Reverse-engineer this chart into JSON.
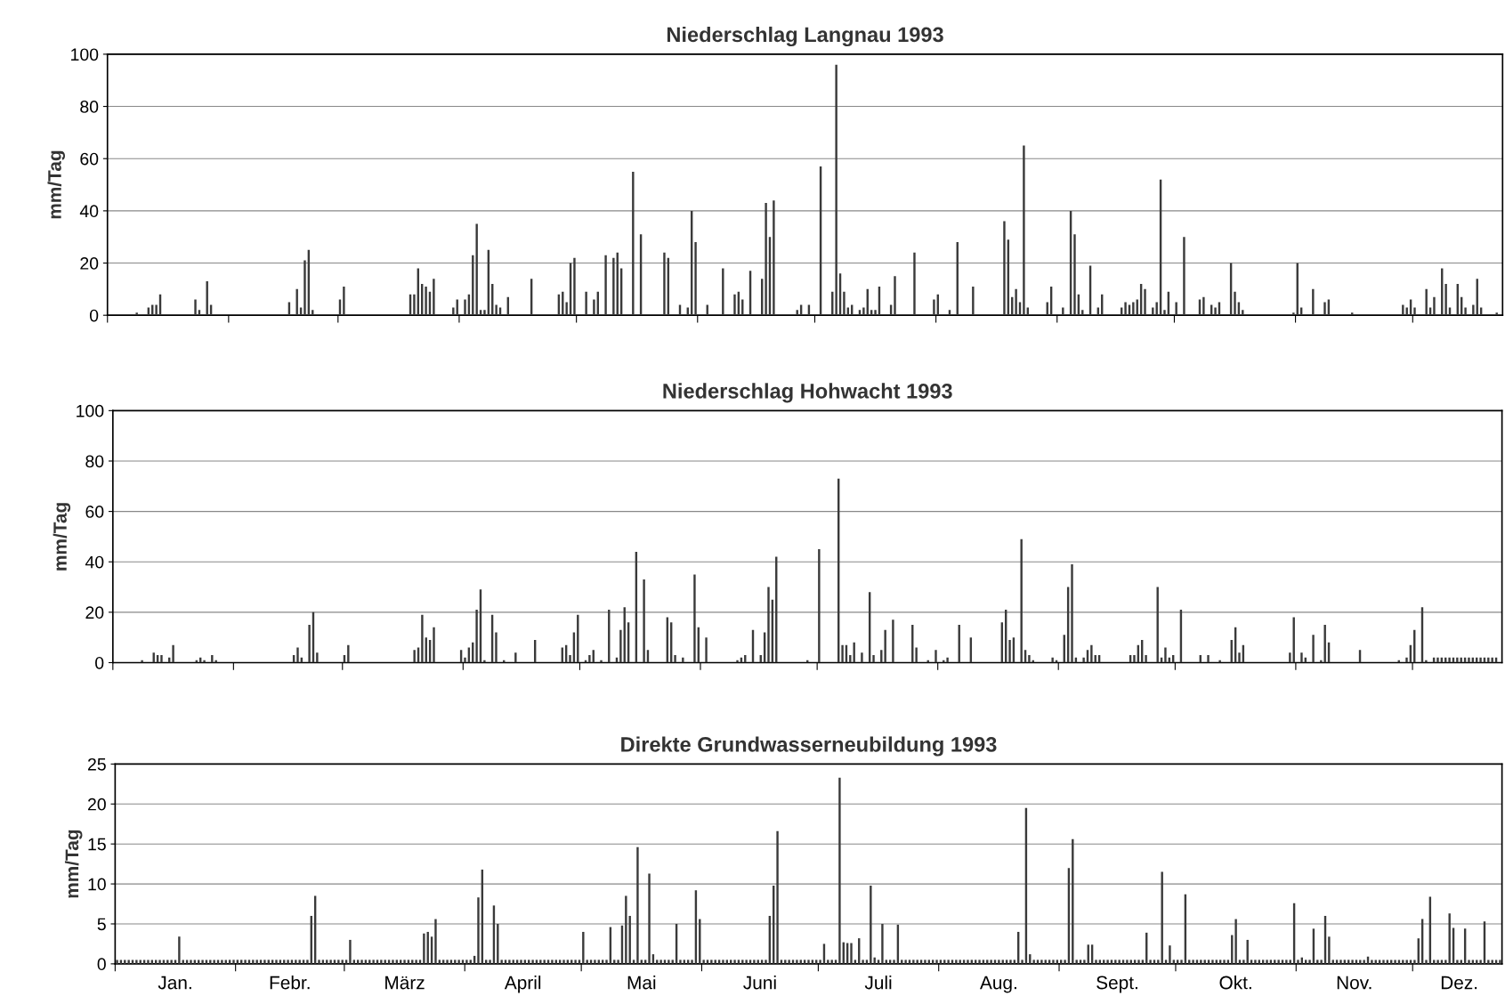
{
  "chart_data": [
    {
      "type": "bar",
      "title": "Niederschlag Langnau 1993",
      "ylabel": "mm/Tag",
      "xlim": [
        "1993-01-01",
        "1993-12-24"
      ],
      "ylim": [
        0,
        100
      ],
      "yticks": [
        0,
        20,
        40,
        60,
        80,
        100
      ],
      "grid": "y",
      "tick_labels": "y",
      "xticks": [
        {
          "value": "1993-01-01",
          "label": null
        },
        {
          "value": "1993-02-01",
          "label": null
        },
        {
          "value": "1993-03-01",
          "label": null
        },
        {
          "value": "1993-04-01",
          "label": null
        },
        {
          "value": "1993-05-01",
          "label": null
        },
        {
          "value": "1993-06-01",
          "label": null
        },
        {
          "value": "1993-07-01",
          "label": null
        },
        {
          "value": "1993-08-01",
          "label": null
        },
        {
          "value": "1993-09-01",
          "label": null
        },
        {
          "value": "1993-10-01",
          "label": null
        },
        {
          "value": "1993-11-01",
          "label": null
        },
        {
          "value": "1993-12-01",
          "label": null
        }
      ],
      "series": [
        {
          "color": "#3a3a3a",
          "x": [
            "1993-01-08",
            "1993-01-11",
            "1993-01-12",
            "1993-01-13",
            "1993-01-14",
            "1993-01-23",
            "1993-01-24",
            "1993-01-26",
            "1993-01-27",
            "1993-02-16",
            "1993-02-18",
            "1993-02-19",
            "1993-02-20",
            "1993-02-21",
            "1993-02-22",
            "1993-03-01",
            "1993-03-02",
            "1993-03-19",
            "1993-03-20",
            "1993-03-21",
            "1993-03-22",
            "1993-03-23",
            "1993-03-24",
            "1993-03-25",
            "1993-03-30",
            "1993-03-31",
            "1993-04-02",
            "1993-04-03",
            "1993-04-04",
            "1993-04-05",
            "1993-04-06",
            "1993-04-07",
            "1993-04-08",
            "1993-04-09",
            "1993-04-10",
            "1993-04-11",
            "1993-04-13",
            "1993-04-19",
            "1993-04-26",
            "1993-04-27",
            "1993-04-28",
            "1993-04-29",
            "1993-04-30",
            "1993-05-03",
            "1993-05-05",
            "1993-05-06",
            "1993-05-08",
            "1993-05-10",
            "1993-05-11",
            "1993-05-12",
            "1993-05-15",
            "1993-05-17",
            "1993-05-23",
            "1993-05-24",
            "1993-05-27",
            "1993-05-29",
            "1993-05-30",
            "1993-05-31",
            "1993-06-03",
            "1993-06-07",
            "1993-06-10",
            "1993-06-11",
            "1993-06-12",
            "1993-06-14",
            "1993-06-17",
            "1993-06-18",
            "1993-06-19",
            "1993-06-20",
            "1993-06-26",
            "1993-06-27",
            "1993-06-29",
            "1993-07-02",
            "1993-07-05",
            "1993-07-06",
            "1993-07-07",
            "1993-07-08",
            "1993-07-09",
            "1993-07-10",
            "1993-07-12",
            "1993-07-13",
            "1993-07-14",
            "1993-07-15",
            "1993-07-16",
            "1993-07-17",
            "1993-07-20",
            "1993-07-21",
            "1993-07-26",
            "1993-07-31",
            "1993-08-01",
            "1993-08-04",
            "1993-08-06",
            "1993-08-10",
            "1993-08-18",
            "1993-08-19",
            "1993-08-20",
            "1993-08-21",
            "1993-08-22",
            "1993-08-23",
            "1993-08-24",
            "1993-08-29",
            "1993-08-30",
            "1993-09-02",
            "1993-09-04",
            "1993-09-05",
            "1993-09-06",
            "1993-09-07",
            "1993-09-09",
            "1993-09-11",
            "1993-09-12",
            "1993-09-17",
            "1993-09-18",
            "1993-09-19",
            "1993-09-20",
            "1993-09-21",
            "1993-09-22",
            "1993-09-23",
            "1993-09-25",
            "1993-09-26",
            "1993-09-27",
            "1993-09-28",
            "1993-09-29",
            "1993-10-01",
            "1993-10-03",
            "1993-10-07",
            "1993-10-08",
            "1993-10-10",
            "1993-10-11",
            "1993-10-12",
            "1993-10-15",
            "1993-10-16",
            "1993-10-17",
            "1993-10-18",
            "1993-10-31",
            "1993-11-01",
            "1993-11-02",
            "1993-11-05",
            "1993-11-08",
            "1993-11-09",
            "1993-11-15",
            "1993-11-28",
            "1993-11-29",
            "1993-11-30",
            "1993-12-01",
            "1993-12-04",
            "1993-12-05",
            "1993-12-06",
            "1993-12-08",
            "1993-12-09",
            "1993-12-10",
            "1993-12-12",
            "1993-12-13",
            "1993-12-14",
            "1993-12-16",
            "1993-12-17",
            "1993-12-18",
            "1993-12-22"
          ],
          "values": [
            1,
            3,
            4,
            4,
            8,
            6,
            2,
            13,
            4,
            5,
            10,
            3,
            21,
            25,
            2,
            6,
            11,
            8,
            8,
            18,
            12,
            11,
            9,
            14,
            3,
            6,
            6,
            8,
            23,
            35,
            2,
            2,
            25,
            12,
            4,
            3,
            7,
            14,
            8,
            9,
            5,
            20,
            22,
            9,
            6,
            9,
            23,
            22,
            24,
            18,
            55,
            31,
            24,
            22,
            4,
            3,
            40,
            28,
            4,
            18,
            8,
            9,
            6,
            17,
            14,
            43,
            30,
            44,
            2,
            4,
            4,
            57,
            9,
            96,
            16,
            9,
            3,
            4,
            2,
            3,
            10,
            2,
            2,
            11,
            4,
            15,
            24,
            6,
            8,
            2,
            28,
            11,
            36,
            29,
            7,
            10,
            5,
            65,
            3,
            5,
            11,
            3,
            40,
            31,
            8,
            2,
            19,
            3,
            8,
            3,
            5,
            4,
            5,
            6,
            12,
            10,
            3,
            5,
            52,
            2,
            9,
            5,
            30,
            6,
            7,
            4,
            3,
            5,
            20,
            9,
            5,
            2,
            1,
            20,
            3,
            10,
            5,
            6,
            1,
            4,
            3,
            6,
            3,
            10,
            3,
            7,
            18,
            12,
            3,
            12,
            7,
            3,
            4,
            14,
            3,
            1
          ]
        }
      ]
    },
    {
      "type": "bar",
      "title": "Niederschlag Hohwacht 1993",
      "ylabel": "mm/Tag",
      "xlim": [
        "1993-01-01",
        "1993-12-24"
      ],
      "ylim": [
        0,
        100
      ],
      "yticks": [
        0,
        20,
        40,
        60,
        80,
        100
      ],
      "grid": "y",
      "tick_labels": "y",
      "xticks": [
        {
          "value": "1993-01-01",
          "label": null
        },
        {
          "value": "1993-02-01",
          "label": null
        },
        {
          "value": "1993-03-01",
          "label": null
        },
        {
          "value": "1993-04-01",
          "label": null
        },
        {
          "value": "1993-05-01",
          "label": null
        },
        {
          "value": "1993-06-01",
          "label": null
        },
        {
          "value": "1993-07-01",
          "label": null
        },
        {
          "value": "1993-08-01",
          "label": null
        },
        {
          "value": "1993-09-01",
          "label": null
        },
        {
          "value": "1993-10-01",
          "label": null
        },
        {
          "value": "1993-11-01",
          "label": null
        },
        {
          "value": "1993-12-01",
          "label": null
        }
      ],
      "series": [
        {
          "color": "#3a3a3a",
          "x": [
            "1993-01-08",
            "1993-01-11",
            "1993-01-12",
            "1993-01-13",
            "1993-01-15",
            "1993-01-16",
            "1993-01-22",
            "1993-01-23",
            "1993-01-24",
            "1993-01-26",
            "1993-01-27",
            "1993-02-16",
            "1993-02-17",
            "1993-02-18",
            "1993-02-20",
            "1993-02-21",
            "1993-02-22",
            "1993-03-01",
            "1993-03-02",
            "1993-03-19",
            "1993-03-20",
            "1993-03-21",
            "1993-03-22",
            "1993-03-23",
            "1993-03-24",
            "1993-03-31",
            "1993-04-01",
            "1993-04-02",
            "1993-04-03",
            "1993-04-04",
            "1993-04-05",
            "1993-04-06",
            "1993-04-08",
            "1993-04-09",
            "1993-04-11",
            "1993-04-14",
            "1993-04-19",
            "1993-04-26",
            "1993-04-27",
            "1993-04-28",
            "1993-04-29",
            "1993-04-30",
            "1993-05-02",
            "1993-05-03",
            "1993-05-04",
            "1993-05-06",
            "1993-05-08",
            "1993-05-10",
            "1993-05-11",
            "1993-05-12",
            "1993-05-13",
            "1993-05-15",
            "1993-05-17",
            "1993-05-18",
            "1993-05-23",
            "1993-05-24",
            "1993-05-25",
            "1993-05-27",
            "1993-05-30",
            "1993-05-31",
            "1993-06-02",
            "1993-06-10",
            "1993-06-11",
            "1993-06-12",
            "1993-06-14",
            "1993-06-16",
            "1993-06-17",
            "1993-06-18",
            "1993-06-19",
            "1993-06-20",
            "1993-06-28",
            "1993-07-01",
            "1993-07-06",
            "1993-07-07",
            "1993-07-08",
            "1993-07-09",
            "1993-07-10",
            "1993-07-12",
            "1993-07-14",
            "1993-07-15",
            "1993-07-17",
            "1993-07-18",
            "1993-07-20",
            "1993-07-25",
            "1993-07-26",
            "1993-07-29",
            "1993-07-31",
            "1993-08-02",
            "1993-08-03",
            "1993-08-06",
            "1993-08-09",
            "1993-08-17",
            "1993-08-18",
            "1993-08-19",
            "1993-08-20",
            "1993-08-22",
            "1993-08-23",
            "1993-08-24",
            "1993-08-25",
            "1993-08-30",
            "1993-08-31",
            "1993-09-02",
            "1993-09-03",
            "1993-09-04",
            "1993-09-05",
            "1993-09-07",
            "1993-09-08",
            "1993-09-09",
            "1993-09-10",
            "1993-09-11",
            "1993-09-19",
            "1993-09-20",
            "1993-09-21",
            "1993-09-22",
            "1993-09-23",
            "1993-09-26",
            "1993-09-27",
            "1993-09-28",
            "1993-09-29",
            "1993-09-30",
            "1993-10-02",
            "1993-10-07",
            "1993-10-09",
            "1993-10-12",
            "1993-10-15",
            "1993-10-16",
            "1993-10-17",
            "1993-10-18",
            "1993-10-30",
            "1993-10-31",
            "1993-11-02",
            "1993-11-03",
            "1993-11-05",
            "1993-11-07",
            "1993-11-08",
            "1993-11-09",
            "1993-11-17",
            "1993-11-27",
            "1993-11-29",
            "1993-11-30",
            "1993-12-01",
            "1993-12-03",
            "1993-12-04",
            "1993-12-06",
            "1993-12-07",
            "1993-12-08",
            "1993-12-09",
            "1993-12-10",
            "1993-12-11",
            "1993-12-12",
            "1993-12-13",
            "1993-12-14",
            "1993-12-15",
            "1993-12-16",
            "1993-12-17",
            "1993-12-18",
            "1993-12-19",
            "1993-12-20",
            "1993-12-21",
            "1993-12-22"
          ],
          "values": [
            1,
            4,
            3,
            3,
            2,
            7,
            1,
            2,
            1,
            3,
            1,
            3,
            6,
            2,
            15,
            20,
            4,
            3,
            7,
            5,
            6,
            19,
            10,
            9,
            14,
            5,
            2,
            6,
            8,
            21,
            29,
            1,
            19,
            12,
            1,
            4,
            9,
            6,
            7,
            3,
            12,
            19,
            1,
            3,
            5,
            1,
            21,
            2,
            13,
            22,
            16,
            44,
            33,
            5,
            18,
            16,
            3,
            2,
            35,
            14,
            10,
            1,
            2,
            3,
            13,
            3,
            12,
            30,
            25,
            42,
            1,
            45,
            73,
            7,
            7,
            3,
            8,
            4,
            28,
            3,
            5,
            13,
            17,
            15,
            6,
            1,
            5,
            1,
            2,
            15,
            10,
            16,
            21,
            9,
            10,
            49,
            5,
            3,
            1,
            2,
            1,
            11,
            30,
            39,
            2,
            2,
            5,
            7,
            3,
            3,
            3,
            3,
            7,
            9,
            3,
            30,
            2,
            6,
            2,
            3,
            21,
            3,
            3,
            1,
            9,
            14,
            4,
            7,
            4,
            18,
            4,
            2,
            11,
            1,
            15,
            8,
            5,
            1,
            2,
            7,
            13,
            22,
            1,
            2,
            2,
            2,
            2,
            2,
            2,
            2,
            2,
            2,
            2,
            2,
            2,
            2,
            2,
            2,
            2,
            2
          ]
        }
      ]
    },
    {
      "type": "bar",
      "title": "Direkte Grundwasserneubildung 1993",
      "ylabel": "mm/Tag",
      "xlim": [
        "1993-01-01",
        "1993-12-24"
      ],
      "ylim": [
        0,
        25
      ],
      "yticks": [
        0,
        5,
        10,
        15,
        20,
        25
      ],
      "grid": "y",
      "xticks": [
        {
          "value": "1993-01-01",
          "label": null
        },
        {
          "value": "1993-02-01",
          "label": null
        },
        {
          "value": "1993-03-01",
          "label": null
        },
        {
          "value": "1993-04-01",
          "label": null
        },
        {
          "value": "1993-05-01",
          "label": null
        },
        {
          "value": "1993-06-01",
          "label": null
        },
        {
          "value": "1993-07-01",
          "label": null
        },
        {
          "value": "1993-08-01",
          "label": null
        },
        {
          "value": "1993-09-01",
          "label": null
        },
        {
          "value": "1993-10-01",
          "label": null
        },
        {
          "value": "1993-11-01",
          "label": null
        },
        {
          "value": "1993-12-01",
          "label": null
        },
        {
          "value": "1993-01-16T12:00",
          "label": "Jan."
        },
        {
          "value": "1993-02-15",
          "label": "Febr."
        },
        {
          "value": "1993-03-16T12:00",
          "label": "März"
        },
        {
          "value": "1993-04-16",
          "label": "April"
        },
        {
          "value": "1993-05-16T12:00",
          "label": "Mai"
        },
        {
          "value": "1993-06-16",
          "label": "Juni"
        },
        {
          "value": "1993-07-16T12:00",
          "label": "Juli"
        },
        {
          "value": "1993-08-16T12:00",
          "label": "Aug."
        },
        {
          "value": "1993-09-16",
          "label": "Sept."
        },
        {
          "value": "1993-10-16T12:00",
          "label": "Okt."
        },
        {
          "value": "1993-11-16",
          "label": "Nov."
        },
        {
          "value": "1993-12-13",
          "label": "Dez."
        }
      ],
      "series": [
        {
          "color": "#3a3a3a",
          "x": [
            "1993-01-01",
            "1993-01-02",
            "1993-01-03",
            "1993-01-04",
            "1993-01-05",
            "1993-01-06",
            "1993-01-07",
            "1993-01-08",
            "1993-01-09",
            "1993-01-10",
            "1993-01-11",
            "1993-01-12",
            "1993-01-13",
            "1993-01-14",
            "1993-01-15",
            "1993-01-16",
            "1993-01-17",
            "1993-01-18",
            "1993-01-19",
            "1993-01-20",
            "1993-01-21",
            "1993-01-22",
            "1993-01-23",
            "1993-01-24",
            "1993-01-25",
            "1993-01-26",
            "1993-01-27",
            "1993-01-28",
            "1993-01-29",
            "1993-01-30",
            "1993-01-31",
            "1993-02-01",
            "1993-02-02",
            "1993-02-03",
            "1993-02-04",
            "1993-02-05",
            "1993-02-06",
            "1993-02-07",
            "1993-02-08",
            "1993-02-09",
            "1993-02-10",
            "1993-02-11",
            "1993-02-12",
            "1993-02-13",
            "1993-02-14",
            "1993-02-15",
            "1993-02-16",
            "1993-02-17",
            "1993-02-18",
            "1993-02-19",
            "1993-02-20",
            "1993-02-21",
            "1993-02-22",
            "1993-02-23",
            "1993-02-24",
            "1993-02-25",
            "1993-02-26",
            "1993-02-27",
            "1993-02-28",
            "1993-03-01",
            "1993-03-02",
            "1993-03-03",
            "1993-03-04",
            "1993-03-05",
            "1993-03-06",
            "1993-03-07",
            "1993-03-08",
            "1993-03-09",
            "1993-03-10",
            "1993-03-11",
            "1993-03-12",
            "1993-03-13",
            "1993-03-14",
            "1993-03-15",
            "1993-03-16",
            "1993-03-17",
            "1993-03-18",
            "1993-03-19",
            "1993-03-20",
            "1993-03-21",
            "1993-03-22",
            "1993-03-23",
            "1993-03-24",
            "1993-03-25",
            "1993-03-26",
            "1993-03-27",
            "1993-03-28",
            "1993-03-29",
            "1993-03-30",
            "1993-03-31",
            "1993-04-01",
            "1993-04-02",
            "1993-04-03",
            "1993-04-04",
            "1993-04-05",
            "1993-04-06",
            "1993-04-07",
            "1993-04-08",
            "1993-04-09",
            "1993-04-10",
            "1993-04-11",
            "1993-04-12",
            "1993-04-13",
            "1993-04-14",
            "1993-04-15",
            "1993-04-16",
            "1993-04-17",
            "1993-04-18",
            "1993-04-19",
            "1993-04-20",
            "1993-04-21",
            "1993-04-22",
            "1993-04-23",
            "1993-04-24",
            "1993-04-25",
            "1993-04-26",
            "1993-04-27",
            "1993-04-28",
            "1993-04-29",
            "1993-04-30",
            "1993-05-01",
            "1993-05-02",
            "1993-05-03",
            "1993-05-04",
            "1993-05-05",
            "1993-05-06",
            "1993-05-07",
            "1993-05-08",
            "1993-05-09",
            "1993-05-10",
            "1993-05-11",
            "1993-05-12",
            "1993-05-13",
            "1993-05-14",
            "1993-05-15",
            "1993-05-16",
            "1993-05-17",
            "1993-05-18",
            "1993-05-19",
            "1993-05-20",
            "1993-05-21",
            "1993-05-22",
            "1993-05-23",
            "1993-05-24",
            "1993-05-25",
            "1993-05-26",
            "1993-05-27",
            "1993-05-28",
            "1993-05-29",
            "1993-05-30",
            "1993-05-31",
            "1993-06-01",
            "1993-06-02",
            "1993-06-03",
            "1993-06-04",
            "1993-06-05",
            "1993-06-06",
            "1993-06-07",
            "1993-06-08",
            "1993-06-09",
            "1993-06-10",
            "1993-06-11",
            "1993-06-12",
            "1993-06-13",
            "1993-06-14",
            "1993-06-15",
            "1993-06-16",
            "1993-06-17",
            "1993-06-18",
            "1993-06-19",
            "1993-06-20",
            "1993-06-21",
            "1993-06-22",
            "1993-06-23",
            "1993-06-24",
            "1993-06-25",
            "1993-06-26",
            "1993-06-27",
            "1993-06-28",
            "1993-06-29",
            "1993-06-30",
            "1993-07-01",
            "1993-07-02",
            "1993-07-03",
            "1993-07-04",
            "1993-07-05",
            "1993-07-06",
            "1993-07-07",
            "1993-07-08",
            "1993-07-09",
            "1993-07-10",
            "1993-07-11",
            "1993-07-12",
            "1993-07-13",
            "1993-07-14",
            "1993-07-15",
            "1993-07-16",
            "1993-07-17",
            "1993-07-18",
            "1993-07-19",
            "1993-07-20",
            "1993-07-21",
            "1993-07-22",
            "1993-07-23",
            "1993-07-24",
            "1993-07-25",
            "1993-07-26",
            "1993-07-27",
            "1993-07-28",
            "1993-07-29",
            "1993-07-30",
            "1993-07-31",
            "1993-08-01",
            "1993-08-02",
            "1993-08-03",
            "1993-08-04",
            "1993-08-05",
            "1993-08-06",
            "1993-08-07",
            "1993-08-08",
            "1993-08-09",
            "1993-08-10",
            "1993-08-11",
            "1993-08-12",
            "1993-08-13",
            "1993-08-14",
            "1993-08-15",
            "1993-08-16",
            "1993-08-17",
            "1993-08-18",
            "1993-08-19",
            "1993-08-20",
            "1993-08-21",
            "1993-08-22",
            "1993-08-23",
            "1993-08-24",
            "1993-08-25",
            "1993-08-26",
            "1993-08-27",
            "1993-08-28",
            "1993-08-29",
            "1993-08-30",
            "1993-08-31",
            "1993-09-01",
            "1993-09-02",
            "1993-09-03",
            "1993-09-04",
            "1993-09-05",
            "1993-09-06",
            "1993-09-07",
            "1993-09-08",
            "1993-09-09",
            "1993-09-10",
            "1993-09-11",
            "1993-09-12",
            "1993-09-13",
            "1993-09-14",
            "1993-09-15",
            "1993-09-16",
            "1993-09-17",
            "1993-09-18",
            "1993-09-19",
            "1993-09-20",
            "1993-09-21",
            "1993-09-22",
            "1993-09-23",
            "1993-09-24",
            "1993-09-25",
            "1993-09-26",
            "1993-09-27",
            "1993-09-28",
            "1993-09-29",
            "1993-09-30",
            "1993-10-01",
            "1993-10-02",
            "1993-10-03",
            "1993-10-04",
            "1993-10-05",
            "1993-10-06",
            "1993-10-07",
            "1993-10-08",
            "1993-10-09",
            "1993-10-10",
            "1993-10-11",
            "1993-10-12",
            "1993-10-13",
            "1993-10-14",
            "1993-10-15",
            "1993-10-16",
            "1993-10-17",
            "1993-10-18",
            "1993-10-19",
            "1993-10-20",
            "1993-10-21",
            "1993-10-22",
            "1993-10-23",
            "1993-10-24",
            "1993-10-25",
            "1993-10-26",
            "1993-10-27",
            "1993-10-28",
            "1993-10-29",
            "1993-10-30",
            "1993-10-31",
            "1993-11-01",
            "1993-11-02",
            "1993-11-03",
            "1993-11-04",
            "1993-11-05",
            "1993-11-06",
            "1993-11-07",
            "1993-11-08",
            "1993-11-09",
            "1993-11-10",
            "1993-11-11",
            "1993-11-12",
            "1993-11-13",
            "1993-11-14",
            "1993-11-15",
            "1993-11-16",
            "1993-11-17",
            "1993-11-18",
            "1993-11-19",
            "1993-11-20",
            "1993-11-21",
            "1993-11-22",
            "1993-11-23",
            "1993-11-24",
            "1993-11-25",
            "1993-11-26",
            "1993-11-27",
            "1993-11-28",
            "1993-11-29",
            "1993-11-30",
            "1993-12-01",
            "1993-12-02",
            "1993-12-03",
            "1993-12-04",
            "1993-12-05",
            "1993-12-06",
            "1993-12-07",
            "1993-12-08",
            "1993-12-09",
            "1993-12-10",
            "1993-12-11",
            "1993-12-12",
            "1993-12-13",
            "1993-12-14",
            "1993-12-15",
            "1993-12-16",
            "1993-12-17",
            "1993-12-18",
            "1993-12-19",
            "1993-12-20",
            "1993-12-21",
            "1993-12-22",
            "1993-12-23"
          ],
          "values": [
            0.5,
            0.5,
            0.5,
            0.5,
            0.5,
            0.5,
            0.5,
            0.5,
            0.5,
            0.5,
            0.5,
            0.5,
            0.5,
            0.5,
            0.5,
            0.5,
            3.4,
            0.5,
            0.5,
            0.5,
            0.5,
            0.5,
            0.5,
            0.5,
            0.5,
            0.5,
            0.5,
            0.5,
            0.5,
            0.5,
            0.5,
            0.5,
            0.5,
            0.5,
            0.5,
            0.5,
            0.5,
            0.5,
            0.5,
            0.5,
            0.5,
            0.5,
            0.5,
            0.5,
            0.5,
            0.5,
            0.5,
            0.5,
            0.5,
            0.5,
            6,
            8.5,
            0.5,
            0.5,
            0.5,
            0.5,
            0.5,
            0.5,
            0.5,
            0.5,
            3,
            0.5,
            0.5,
            0.5,
            0.5,
            0.5,
            0.5,
            0.5,
            0.5,
            0.5,
            0.5,
            0.5,
            0.5,
            0.5,
            0.5,
            0.5,
            0.5,
            0.5,
            0.5,
            3.8,
            4,
            3.4,
            5.6,
            0.5,
            0.5,
            0.5,
            0.5,
            0.5,
            0.5,
            0.5,
            0.5,
            0.5,
            1,
            8.3,
            11.8,
            0.5,
            0.5,
            7.3,
            5,
            0.5,
            0.5,
            0.5,
            0.5,
            0.5,
            0.5,
            0.5,
            0.5,
            0.5,
            0.5,
            0.5,
            0.5,
            0.5,
            0.5,
            0.5,
            0.5,
            0.5,
            0.5,
            0.5,
            0.5,
            0.5,
            4,
            0.5,
            0.5,
            0.5,
            0.5,
            0.5,
            0.5,
            4.6,
            0.5,
            0.5,
            4.8,
            8.5,
            6,
            0.5,
            14.6,
            0.5,
            0.5,
            11.3,
            1.2,
            0.5,
            0.5,
            0.5,
            0.5,
            0.5,
            5,
            0.5,
            0.5,
            0.5,
            0.5,
            9.2,
            5.6,
            0.5,
            0.5,
            0.5,
            0.5,
            0.5,
            0.5,
            0.5,
            0.5,
            0.5,
            0.5,
            0.5,
            0.5,
            0.5,
            0.5,
            0.5,
            0.5,
            0.5,
            6,
            9.8,
            16.6,
            0.5,
            0.5,
            0.5,
            0.5,
            0.5,
            0.5,
            0.5,
            0.5,
            0.5,
            0.5,
            0.5,
            2.5,
            0.5,
            0.5,
            0.5,
            23.3,
            2.7,
            2.6,
            2.6,
            0.5,
            3.2,
            0.5,
            0.5,
            9.8,
            0.8,
            0.5,
            5,
            0.5,
            0.5,
            0.5,
            4.9,
            0.5,
            0.5,
            0.5,
            0.5,
            0.5,
            0.5,
            0.5,
            0.5,
            0.5,
            0.5,
            0.5,
            0.5,
            0.5,
            0.5,
            0.5,
            0.5,
            0.5,
            0.5,
            0.5,
            0.5,
            0.5,
            0.5,
            0.5,
            0.5,
            0.5,
            0.5,
            0.5,
            0.5,
            0.5,
            0.5,
            4,
            0.5,
            19.5,
            1.2,
            0.5,
            0.5,
            0.5,
            0.5,
            0.5,
            0.5,
            0.5,
            0.5,
            0.5,
            12,
            15.6,
            0.5,
            0.5,
            0.5,
            2.4,
            2.4,
            0.5,
            0.5,
            0.5,
            0.5,
            0.5,
            0.5,
            0.5,
            0.5,
            0.5,
            0.5,
            0.5,
            0.5,
            0.5,
            3.9,
            0.5,
            0.5,
            0.5,
            11.5,
            0.5,
            2.3,
            0.5,
            0.5,
            0.5,
            8.7,
            0.5,
            0.5,
            0.5,
            0.5,
            0.5,
            0.5,
            0.5,
            0.5,
            0.5,
            0.5,
            0.5,
            3.6,
            5.6,
            0.5,
            0.5,
            3,
            0.5,
            0.5,
            0.5,
            0.5,
            0.5,
            0.5,
            0.5,
            0.5,
            0.5,
            0.5,
            0.5,
            7.6,
            0.5,
            0.8,
            0.5,
            0.5,
            4.4,
            0.5,
            0.5,
            6,
            3.4,
            0.5,
            0.5,
            0.5,
            0.5,
            0.5,
            0.5,
            0.5,
            0.5,
            0.5,
            0.9,
            0.5,
            0.5,
            0.5,
            0.5,
            0.5,
            0.5,
            0.5,
            0.5,
            0.5,
            0.5,
            0.5,
            0.5,
            3.2,
            5.6,
            0.5,
            8.4,
            0.5,
            0.5,
            0.5,
            0.5,
            6.3,
            4.5,
            0.5,
            0.5,
            4.4,
            0.5,
            0.5,
            0.5,
            0.5,
            5.3,
            0.5,
            0.5,
            0.5,
            0.5
          ]
        }
      ]
    }
  ]
}
